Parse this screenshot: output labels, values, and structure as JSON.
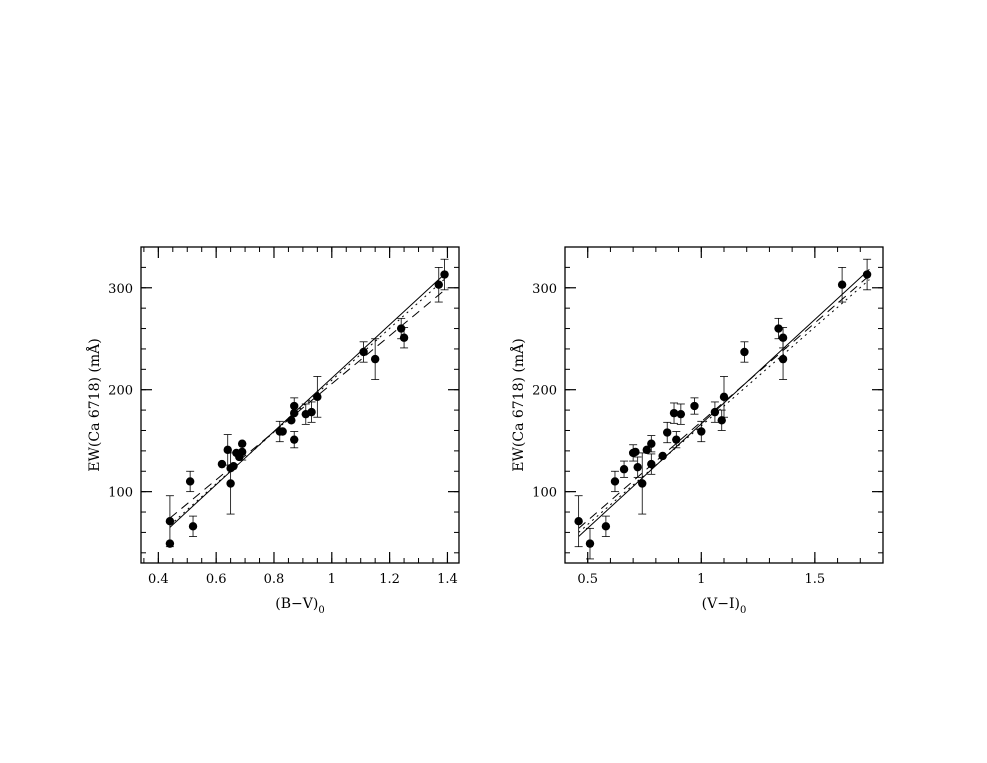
{
  "chart_data": [
    {
      "type": "scatter",
      "xlabel": "(B−V)",
      "xlabel_sub": "0",
      "ylabel": "EW(Ca  6718)  (mÅ)",
      "xlim": [
        0.34,
        1.44
      ],
      "ylim": [
        30,
        340
      ],
      "xticks": [
        0.4,
        0.6,
        0.8,
        1.0,
        1.2,
        1.4
      ],
      "xtick_labels": [
        "0.4",
        "0.6",
        "0.8",
        "1",
        "1.2",
        "1.4"
      ],
      "yticks": [
        100,
        200,
        300
      ],
      "ytick_labels": [
        "100",
        "200",
        "300"
      ],
      "points": [
        {
          "x": 0.44,
          "y": 71,
          "err": 25
        },
        {
          "x": 0.44,
          "y": 49,
          "err": 0
        },
        {
          "x": 0.51,
          "y": 110,
          "err": 10
        },
        {
          "x": 0.52,
          "y": 66,
          "err": 10
        },
        {
          "x": 0.62,
          "y": 127,
          "err": 0
        },
        {
          "x": 0.64,
          "y": 141,
          "err": 15
        },
        {
          "x": 0.65,
          "y": 108,
          "err": 30
        },
        {
          "x": 0.65,
          "y": 123,
          "err": 0
        },
        {
          "x": 0.66,
          "y": 125,
          "err": 0
        },
        {
          "x": 0.67,
          "y": 138,
          "err": 0
        },
        {
          "x": 0.68,
          "y": 134,
          "err": 0
        },
        {
          "x": 0.69,
          "y": 139,
          "err": 8
        },
        {
          "x": 0.69,
          "y": 147,
          "err": 0
        },
        {
          "x": 0.82,
          "y": 159,
          "err": 10
        },
        {
          "x": 0.83,
          "y": 159,
          "err": 0
        },
        {
          "x": 0.86,
          "y": 170,
          "err": 0
        },
        {
          "x": 0.87,
          "y": 184,
          "err": 8
        },
        {
          "x": 0.87,
          "y": 177,
          "err": 0
        },
        {
          "x": 0.87,
          "y": 151,
          "err": 8
        },
        {
          "x": 0.91,
          "y": 176,
          "err": 10
        },
        {
          "x": 0.93,
          "y": 178,
          "err": 10
        },
        {
          "x": 0.95,
          "y": 193,
          "err": 20
        },
        {
          "x": 1.11,
          "y": 237,
          "err": 10
        },
        {
          "x": 1.15,
          "y": 230,
          "err": 20
        },
        {
          "x": 1.24,
          "y": 260,
          "err": 10
        },
        {
          "x": 1.25,
          "y": 251,
          "err": 10
        },
        {
          "x": 1.37,
          "y": 303,
          "err": 17
        },
        {
          "x": 1.39,
          "y": 313,
          "err": 15
        }
      ],
      "fits": [
        {
          "style": "solid",
          "x": [
            0.44,
            1.4
          ],
          "y": [
            65,
            316
          ]
        },
        {
          "style": "dashed",
          "x": [
            0.44,
            1.4
          ],
          "y": [
            74,
            300
          ]
        },
        {
          "style": "dotted",
          "x": [
            0.44,
            1.4
          ],
          "y": [
            67,
            311
          ]
        }
      ]
    },
    {
      "type": "scatter",
      "xlabel": "(V−I)",
      "xlabel_sub": "0",
      "ylabel": "EW(Ca  6718)  (mÅ)",
      "xlim": [
        0.4,
        1.8
      ],
      "ylim": [
        30,
        340
      ],
      "xticks": [
        0.5,
        1.0,
        1.5
      ],
      "xtick_labels": [
        "0.5",
        "1",
        "1.5"
      ],
      "yticks": [
        100,
        200,
        300
      ],
      "ytick_labels": [
        "100",
        "200",
        "300"
      ],
      "points": [
        {
          "x": 0.46,
          "y": 71,
          "err": 25
        },
        {
          "x": 0.51,
          "y": 49,
          "err": 15
        },
        {
          "x": 0.58,
          "y": 66,
          "err": 10
        },
        {
          "x": 0.62,
          "y": 110,
          "err": 10
        },
        {
          "x": 0.66,
          "y": 122,
          "err": 8
        },
        {
          "x": 0.7,
          "y": 138,
          "err": 8
        },
        {
          "x": 0.71,
          "y": 139,
          "err": 0
        },
        {
          "x": 0.72,
          "y": 124,
          "err": 10
        },
        {
          "x": 0.74,
          "y": 108,
          "err": 30
        },
        {
          "x": 0.76,
          "y": 141,
          "err": 0
        },
        {
          "x": 0.78,
          "y": 147,
          "err": 8
        },
        {
          "x": 0.78,
          "y": 127,
          "err": 10
        },
        {
          "x": 0.83,
          "y": 135,
          "err": 0
        },
        {
          "x": 0.85,
          "y": 158,
          "err": 10
        },
        {
          "x": 0.88,
          "y": 177,
          "err": 10
        },
        {
          "x": 0.89,
          "y": 151,
          "err": 8
        },
        {
          "x": 0.91,
          "y": 176,
          "err": 10
        },
        {
          "x": 0.97,
          "y": 184,
          "err": 8
        },
        {
          "x": 1.0,
          "y": 159,
          "err": 10
        },
        {
          "x": 1.06,
          "y": 178,
          "err": 10
        },
        {
          "x": 1.09,
          "y": 170,
          "err": 10
        },
        {
          "x": 1.1,
          "y": 193,
          "err": 20
        },
        {
          "x": 1.19,
          "y": 237,
          "err": 10
        },
        {
          "x": 1.34,
          "y": 260,
          "err": 10
        },
        {
          "x": 1.36,
          "y": 251,
          "err": 10
        },
        {
          "x": 1.36,
          "y": 230,
          "err": 20
        },
        {
          "x": 1.62,
          "y": 303,
          "err": 17
        },
        {
          "x": 1.73,
          "y": 313,
          "err": 15
        }
      ],
      "fits": [
        {
          "style": "solid",
          "x": [
            0.46,
            1.74
          ],
          "y": [
            56,
            318
          ]
        },
        {
          "style": "dashed",
          "x": [
            0.46,
            1.74
          ],
          "y": [
            64,
            312
          ]
        },
        {
          "style": "dotted",
          "x": [
            0.46,
            1.74
          ],
          "y": [
            60,
            308
          ]
        }
      ]
    }
  ]
}
